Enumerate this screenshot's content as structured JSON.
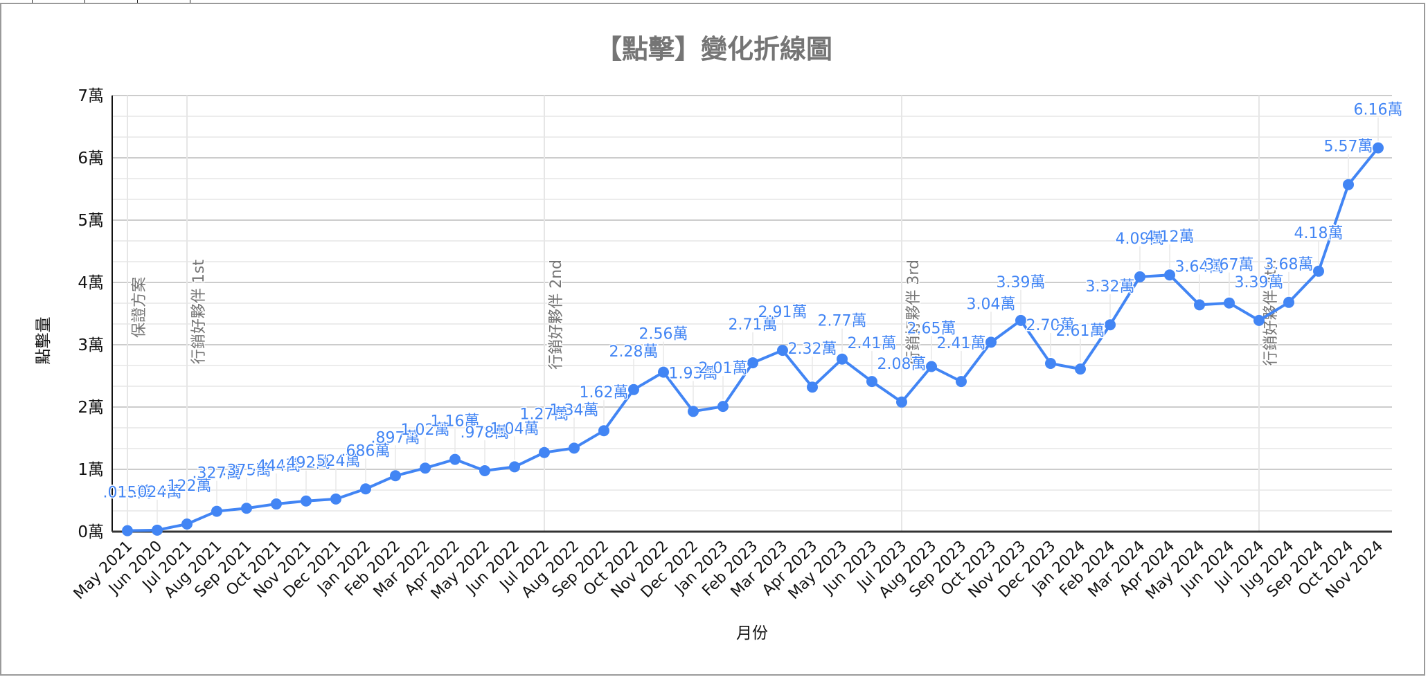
{
  "chart_data": {
    "type": "line",
    "title": "【點擊】變化折線圖",
    "xlabel": "月份",
    "ylabel": "點擊量",
    "ylim": [
      0,
      70000
    ],
    "yticks": [
      "0萬",
      "1萬",
      "2萬",
      "3萬",
      "4萬",
      "5萬",
      "6萬",
      "7萬"
    ],
    "grid": true,
    "legend": "none",
    "series_color": "#4285f4",
    "categories": [
      "May 2021",
      "Jun 2020",
      "Jul 2021",
      "Aug 2021",
      "Sep 2021",
      "Oct 2021",
      "Nov 2021",
      "Dec 2021",
      "Jan 2022",
      "Feb 2022",
      "Mar 2022",
      "Apr 2022",
      "May 2022",
      "Jun 2022",
      "Jul 2022",
      "Aug 2022",
      "Sep 2022",
      "Oct 2022",
      "Nov 2022",
      "Dec 2022",
      "Jan 2023",
      "Feb 2023",
      "Mar 2023",
      "Apr 2023",
      "May 2023",
      "Jun 2023",
      "Jul 2023",
      "Aug 2023",
      "Sep 2023",
      "Oct 2023",
      "Nov 2023",
      "Dec 2023",
      "Jan 2024",
      "Feb 2024",
      "Mar 2024",
      "Apr 2024",
      "May 2024",
      "Jun 2024",
      "Jul 2024",
      "Jug 2024",
      "Sep 2024",
      "Oct 2024",
      "Nov 2024"
    ],
    "series": [
      {
        "name": "點擊量",
        "values": [
          150,
          240,
          1220,
          3270,
          3750,
          4440,
          4920,
          5240,
          6860,
          8970,
          10200,
          11600,
          9780,
          10400,
          12700,
          13400,
          16200,
          22800,
          25600,
          19300,
          20100,
          27100,
          29100,
          23200,
          27700,
          24100,
          20800,
          26500,
          24100,
          30400,
          33900,
          27000,
          26100,
          33200,
          40900,
          41200,
          36400,
          36700,
          33900,
          36800,
          41800,
          55700,
          61600
        ],
        "labels": [
          ".015萬",
          ".024萬",
          ".122萬",
          ".327萬",
          ".375萬",
          ".444萬",
          ".492萬",
          ".524萬",
          ".686萬",
          ".897萬",
          "1.02萬",
          "1.16萬",
          ".978萬",
          "1.04萬",
          "1.27萬",
          "1.34萬",
          "1.62萬",
          "2.28萬",
          "2.56萬",
          "1.93萬",
          "2.01萬",
          "2.71萬",
          "2.91萬",
          "2.32萬",
          "2.77萬",
          "2.41萬",
          "2.08萬",
          "2.65萬",
          "2.41萬",
          "3.04萬",
          "3.39萬",
          "2.70萬",
          "2.61萬",
          "3.32萬",
          "4.09萬",
          "4.12萬",
          "3.64萬",
          "3.67萬",
          "3.39萬",
          "3.68萬",
          "4.18萬",
          "5.57萬",
          "6.16萬"
        ]
      }
    ],
    "annotations": [
      {
        "category_index": 0,
        "text": "保證方案"
      },
      {
        "category_index": 2,
        "text": "行銷好夥伴 1st"
      },
      {
        "category_index": 14,
        "text": "行銷好夥伴 2nd"
      },
      {
        "category_index": 26,
        "text": "行銷好夥伴 3rd"
      },
      {
        "category_index": 38,
        "text": "行銷好夥伴 4th"
      }
    ]
  }
}
